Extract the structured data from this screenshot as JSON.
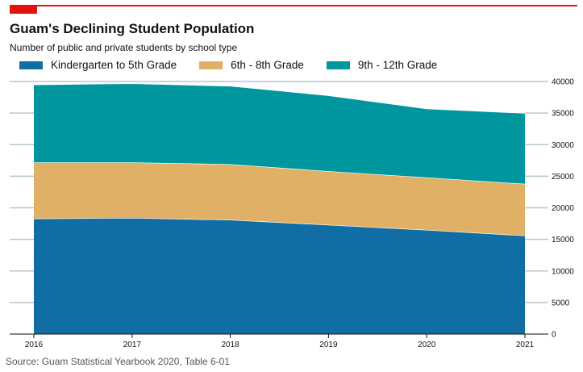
{
  "header": {
    "title": "Guam's Declining Student Population",
    "subtitle": "Number of public and private students by school type"
  },
  "footer": {
    "source": "Source: Guam Statistical Yearbook 2020, Table 6-01"
  },
  "colors": {
    "accent": "#e3120b",
    "grid": "#b7c6cf",
    "axis": "#121212"
  },
  "chart_data": {
    "type": "area",
    "stacked": true,
    "title": "Guam's Declining Student Population",
    "subtitle": "Number of public and private students by school type",
    "x": [
      2016,
      2017,
      2018,
      2019,
      2020,
      2021
    ],
    "x_tick_labels": [
      "2016",
      "2017",
      "2018",
      "2019",
      "2020",
      "2021"
    ],
    "ylim": [
      0,
      40000
    ],
    "y_ticks": [
      0,
      5000,
      10000,
      15000,
      20000,
      25000,
      30000,
      35000,
      40000
    ],
    "y_tick_labels": [
      "0",
      "5000",
      "10000",
      "15000",
      "20000",
      "25000",
      "30000",
      "35000",
      "40000"
    ],
    "y_axis_position": "right",
    "grid": true,
    "legend_position": "top-left",
    "series": [
      {
        "name": "Kindergarten to 5th Grade",
        "color": "#106ea4",
        "values": [
          18300,
          18400,
          18100,
          17300,
          16500,
          15600
        ]
      },
      {
        "name": "6th - 8th Grade",
        "color": "#e0b066",
        "values": [
          8900,
          8800,
          8800,
          8500,
          8300,
          8200
        ]
      },
      {
        "name": "9th - 12th Grade",
        "color": "#00969e",
        "values": [
          12300,
          12500,
          12400,
          12000,
          10900,
          11200
        ]
      }
    ]
  }
}
